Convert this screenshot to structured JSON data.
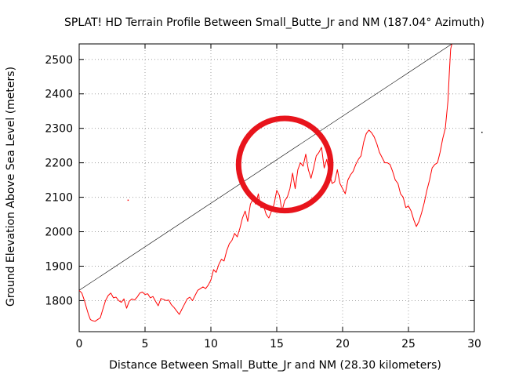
{
  "chart_data": {
    "type": "line",
    "title": "SPLAT! HD Terrain Profile Between Small_Butte_Jr and NM (187.04° Azimuth)",
    "xlabel": "Distance Between Small_Butte_Jr and NM (28.30 kilometers)",
    "ylabel": "Ground Elevation Above Sea Level (meters)",
    "xlim": [
      0,
      30
    ],
    "ylim": [
      1710,
      2545
    ],
    "xticks": [
      "0",
      "5",
      "10",
      "15",
      "20",
      "25",
      "30"
    ],
    "yticks": [
      "1800",
      "1900",
      "2000",
      "2100",
      "2200",
      "2300",
      "2400",
      "2500"
    ],
    "grid": true,
    "legend": "none",
    "colors": {
      "terrain": "#ff0000",
      "los": "#000000",
      "annotation": "#e8141c"
    },
    "series": [
      {
        "kind": "terrain",
        "x": [
          0.0,
          0.2,
          0.4,
          0.55,
          0.7,
          0.85,
          1.0,
          1.2,
          1.4,
          1.6,
          1.8,
          2.0,
          2.2,
          2.4,
          2.6,
          2.8,
          3.0,
          3.2,
          3.4,
          3.6,
          3.8,
          4.0,
          4.2,
          4.4,
          4.6,
          4.8,
          5.0,
          5.2,
          5.4,
          5.6,
          5.8,
          6.0,
          6.2,
          6.4,
          6.6,
          6.8,
          7.0,
          7.2,
          7.4,
          7.6,
          7.8,
          8.0,
          8.2,
          8.4,
          8.6,
          8.8,
          9.0,
          9.2,
          9.4,
          9.6,
          9.8,
          10.0,
          10.2,
          10.4,
          10.6,
          10.8,
          11.0,
          11.2,
          11.4,
          11.6,
          11.8,
          12.0,
          12.2,
          12.4,
          12.6,
          12.8,
          13.0,
          13.2,
          13.4,
          13.6,
          13.8,
          14.0,
          14.2,
          14.4,
          14.6,
          14.8,
          15.0,
          15.2,
          15.4,
          15.6,
          15.8,
          16.0,
          16.2,
          16.4,
          16.6,
          16.8,
          17.0,
          17.2,
          17.4,
          17.6,
          17.8,
          18.0,
          18.2,
          18.4,
          18.6,
          18.8,
          19.0,
          19.2,
          19.4,
          19.6,
          19.8,
          20.0,
          20.2,
          20.4,
          20.6,
          20.8,
          21.0,
          21.2,
          21.4,
          21.6,
          21.8,
          22.0,
          22.2,
          22.4,
          22.6,
          22.8,
          23.0,
          23.2,
          23.4,
          23.6,
          23.8,
          24.0,
          24.2,
          24.4,
          24.6,
          24.8,
          25.0,
          25.2,
          25.4,
          25.6,
          25.8,
          26.0,
          26.2,
          26.4,
          26.6,
          26.8,
          27.0,
          27.2,
          27.4,
          27.6,
          27.8,
          28.0,
          28.1,
          28.2,
          28.3
        ],
        "y": [
          1830,
          1822,
          1800,
          1780,
          1760,
          1745,
          1742,
          1740,
          1745,
          1750,
          1775,
          1800,
          1815,
          1822,
          1808,
          1810,
          1800,
          1795,
          1805,
          1778,
          1798,
          1805,
          1802,
          1810,
          1822,
          1825,
          1818,
          1820,
          1808,
          1812,
          1798,
          1785,
          1806,
          1804,
          1800,
          1802,
          1788,
          1780,
          1770,
          1760,
          1775,
          1790,
          1805,
          1810,
          1800,
          1815,
          1830,
          1835,
          1840,
          1835,
          1845,
          1860,
          1890,
          1882,
          1905,
          1920,
          1915,
          1945,
          1965,
          1975,
          1995,
          1985,
          2010,
          2040,
          2060,
          2030,
          2080,
          2095,
          2080,
          2110,
          2070,
          2075,
          2050,
          2040,
          2060,
          2080,
          2120,
          2105,
          2060,
          2090,
          2100,
          2125,
          2170,
          2125,
          2180,
          2200,
          2190,
          2225,
          2180,
          2155,
          2185,
          2220,
          2230,
          2245,
          2185,
          2210,
          2170,
          2140,
          2145,
          2180,
          2140,
          2125,
          2110,
          2150,
          2165,
          2175,
          2195,
          2210,
          2220,
          2260,
          2285,
          2295,
          2287,
          2275,
          2255,
          2230,
          2215,
          2200,
          2200,
          2195,
          2175,
          2150,
          2140,
          2110,
          2100,
          2070,
          2075,
          2060,
          2035,
          2015,
          2030,
          2055,
          2085,
          2120,
          2150,
          2185,
          2195,
          2200,
          2230,
          2270,
          2300,
          2380,
          2460,
          2530,
          2545
        ]
      },
      {
        "kind": "line-of-sight",
        "x": [
          0,
          28.3
        ],
        "y": [
          1830,
          2545
        ]
      }
    ],
    "stray_marks": [
      {
        "x": 3.7,
        "y": 2092
      }
    ],
    "annotation": {
      "shape": "circle",
      "center_x": 15.6,
      "center_y": 2195,
      "radius_km": 3.5,
      "color": "#e8141c"
    }
  }
}
